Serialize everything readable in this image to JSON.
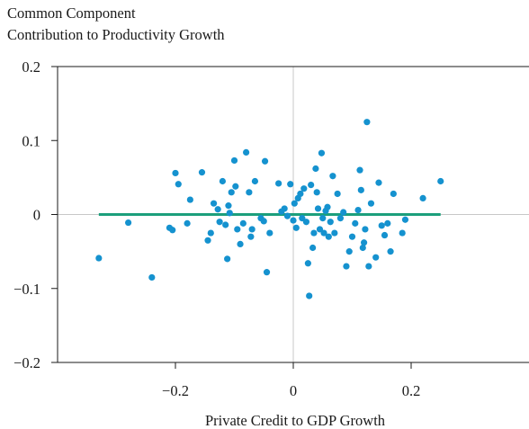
{
  "chart_data": {
    "type": "scatter",
    "title_lines": [
      "Common Component",
      "Contribution to Productivity Growth"
    ],
    "xlabel": "Private Credit to GDP Growth",
    "ylabel": "",
    "xlim": [
      -0.4,
      0.4
    ],
    "ylim": [
      -0.2,
      0.2
    ],
    "x_ticks": [
      {
        "value": -0.2,
        "label": "−0.2"
      },
      {
        "value": 0,
        "label": "0"
      },
      {
        "value": 0.2,
        "label": "0.2"
      }
    ],
    "y_ticks": [
      {
        "value": 0.2,
        "label": "0.2"
      },
      {
        "value": 0.1,
        "label": "0.1"
      },
      {
        "value": 0,
        "label": "0"
      },
      {
        "value": -0.1,
        "label": "−0.1"
      },
      {
        "value": -0.2,
        "label": "−0.2"
      }
    ],
    "zero_lines": true,
    "grid": false,
    "colors": {
      "points": "#1592cf",
      "fit_line": "#1c9f7c",
      "zero_line": "#c8c8c8",
      "frame": "#1a1a1a"
    },
    "fit_line": {
      "x": [
        -0.33,
        0.25
      ],
      "y": [
        0.0,
        0.0
      ]
    },
    "points": [
      {
        "x": -0.33,
        "y": -0.059
      },
      {
        "x": -0.28,
        "y": -0.011
      },
      {
        "x": -0.24,
        "y": -0.085
      },
      {
        "x": -0.21,
        "y": -0.018
      },
      {
        "x": -0.205,
        "y": -0.021
      },
      {
        "x": -0.2,
        "y": 0.056
      },
      {
        "x": -0.195,
        "y": 0.041
      },
      {
        "x": -0.18,
        "y": -0.012
      },
      {
        "x": -0.175,
        "y": 0.02
      },
      {
        "x": -0.155,
        "y": 0.057
      },
      {
        "x": -0.145,
        "y": -0.035
      },
      {
        "x": -0.14,
        "y": -0.025
      },
      {
        "x": -0.135,
        "y": 0.015
      },
      {
        "x": -0.128,
        "y": 0.007
      },
      {
        "x": -0.125,
        "y": -0.01
      },
      {
        "x": -0.12,
        "y": 0.045
      },
      {
        "x": -0.115,
        "y": -0.014
      },
      {
        "x": -0.112,
        "y": -0.06
      },
      {
        "x": -0.11,
        "y": 0.012
      },
      {
        "x": -0.108,
        "y": 0.002
      },
      {
        "x": -0.105,
        "y": 0.03
      },
      {
        "x": -0.1,
        "y": 0.073
      },
      {
        "x": -0.098,
        "y": 0.038
      },
      {
        "x": -0.095,
        "y": -0.02
      },
      {
        "x": -0.09,
        "y": -0.04
      },
      {
        "x": -0.085,
        "y": -0.012
      },
      {
        "x": -0.08,
        "y": 0.084
      },
      {
        "x": -0.075,
        "y": 0.03
      },
      {
        "x": -0.072,
        "y": -0.03
      },
      {
        "x": -0.07,
        "y": -0.02
      },
      {
        "x": -0.065,
        "y": 0.045
      },
      {
        "x": -0.055,
        "y": -0.005
      },
      {
        "x": -0.05,
        "y": -0.009
      },
      {
        "x": -0.048,
        "y": 0.072
      },
      {
        "x": -0.045,
        "y": -0.078
      },
      {
        "x": -0.04,
        "y": -0.025
      },
      {
        "x": -0.025,
        "y": 0.042
      },
      {
        "x": -0.02,
        "y": 0.004
      },
      {
        "x": -0.015,
        "y": 0.008
      },
      {
        "x": -0.01,
        "y": -0.002
      },
      {
        "x": -0.005,
        "y": 0.041
      },
      {
        "x": 0.0,
        "y": -0.008
      },
      {
        "x": 0.002,
        "y": 0.015
      },
      {
        "x": 0.005,
        "y": -0.018
      },
      {
        "x": 0.008,
        "y": 0.022
      },
      {
        "x": 0.012,
        "y": 0.028
      },
      {
        "x": 0.015,
        "y": -0.005
      },
      {
        "x": 0.018,
        "y": 0.035
      },
      {
        "x": 0.022,
        "y": -0.01
      },
      {
        "x": 0.025,
        "y": -0.066
      },
      {
        "x": 0.027,
        "y": -0.11
      },
      {
        "x": 0.03,
        "y": 0.04
      },
      {
        "x": 0.033,
        "y": -0.045
      },
      {
        "x": 0.035,
        "y": -0.025
      },
      {
        "x": 0.038,
        "y": 0.062
      },
      {
        "x": 0.04,
        "y": 0.03
      },
      {
        "x": 0.042,
        "y": 0.008
      },
      {
        "x": 0.045,
        "y": -0.02
      },
      {
        "x": 0.048,
        "y": 0.083
      },
      {
        "x": 0.05,
        "y": -0.005
      },
      {
        "x": 0.052,
        "y": -0.025
      },
      {
        "x": 0.055,
        "y": 0.005
      },
      {
        "x": 0.058,
        "y": 0.01
      },
      {
        "x": 0.06,
        "y": -0.03
      },
      {
        "x": 0.063,
        "y": -0.01
      },
      {
        "x": 0.067,
        "y": 0.052
      },
      {
        "x": 0.07,
        "y": -0.025
      },
      {
        "x": 0.075,
        "y": 0.028
      },
      {
        "x": 0.08,
        "y": -0.005
      },
      {
        "x": 0.085,
        "y": 0.003
      },
      {
        "x": 0.09,
        "y": -0.07
      },
      {
        "x": 0.095,
        "y": -0.05
      },
      {
        "x": 0.1,
        "y": -0.03
      },
      {
        "x": 0.105,
        "y": -0.012
      },
      {
        "x": 0.11,
        "y": 0.006
      },
      {
        "x": 0.113,
        "y": 0.06
      },
      {
        "x": 0.115,
        "y": 0.033
      },
      {
        "x": 0.118,
        "y": -0.045
      },
      {
        "x": 0.12,
        "y": -0.038
      },
      {
        "x": 0.122,
        "y": -0.02
      },
      {
        "x": 0.125,
        "y": 0.125
      },
      {
        "x": 0.128,
        "y": -0.07
      },
      {
        "x": 0.132,
        "y": 0.015
      },
      {
        "x": 0.14,
        "y": -0.058
      },
      {
        "x": 0.145,
        "y": 0.043
      },
      {
        "x": 0.15,
        "y": -0.015
      },
      {
        "x": 0.155,
        "y": -0.028
      },
      {
        "x": 0.16,
        "y": -0.012
      },
      {
        "x": 0.165,
        "y": -0.05
      },
      {
        "x": 0.17,
        "y": 0.028
      },
      {
        "x": 0.185,
        "y": -0.025
      },
      {
        "x": 0.19,
        "y": -0.007
      },
      {
        "x": 0.22,
        "y": 0.022
      },
      {
        "x": 0.25,
        "y": 0.045
      }
    ]
  }
}
